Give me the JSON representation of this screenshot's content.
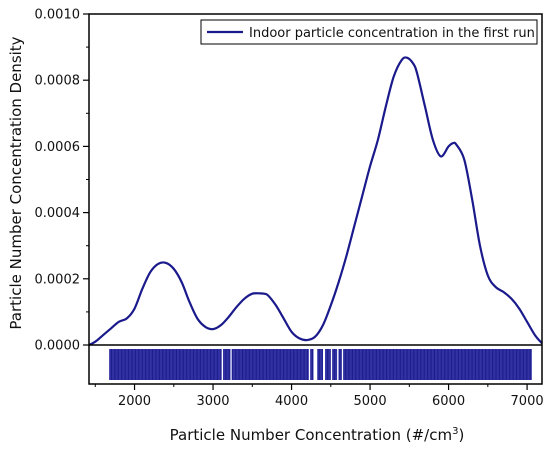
{
  "chart_data": {
    "type": "line",
    "title": "",
    "xlabel": "Particle Number Concentration (#/cm",
    "xlabel_superscript": "3",
    "xlabel_suffix": ")",
    "ylabel": "Particle Number Concentration Density",
    "xlim": [
      1420,
      7190
    ],
    "ylim": [
      0,
      0.001
    ],
    "legend_position": "top-right",
    "grid": false,
    "color": "#1a1a8c",
    "x_ticks": [
      2000,
      3000,
      4000,
      5000,
      6000,
      7000
    ],
    "x_tick_labels": [
      "2000",
      "3000",
      "4000",
      "5000",
      "6000",
      "7000"
    ],
    "y_ticks": [
      0,
      0.0002,
      0.0004,
      0.0006,
      0.0008,
      0.001
    ],
    "y_tick_labels": [
      "0.0000",
      "0.0002",
      "0.0004",
      "0.0006",
      "0.0008",
      "0.0010"
    ],
    "series": [
      {
        "name": "Indoor particle concentration in the first run",
        "x": [
          1420,
          1500,
          1600,
          1700,
          1800,
          1900,
          2000,
          2100,
          2200,
          2300,
          2400,
          2500,
          2600,
          2700,
          2800,
          2900,
          3000,
          3100,
          3200,
          3300,
          3400,
          3500,
          3600,
          3650,
          3700,
          3800,
          3900,
          4000,
          4100,
          4200,
          4300,
          4400,
          4500,
          4600,
          4700,
          4800,
          4900,
          5000,
          5100,
          5200,
          5300,
          5400,
          5470,
          5550,
          5600,
          5700,
          5800,
          5900,
          6000,
          6060,
          6100,
          6200,
          6300,
          6400,
          6500,
          6600,
          6700,
          6800,
          6900,
          7000,
          7100,
          7190
        ],
        "y": [
          0,
          1e-05,
          3e-05,
          5e-05,
          7e-05,
          8e-05,
          0.00011,
          0.00017,
          0.00022,
          0.000245,
          0.000248,
          0.00023,
          0.00019,
          0.00013,
          8e-05,
          5.5e-05,
          4.8e-05,
          6e-05,
          8.5e-05,
          0.000115,
          0.00014,
          0.000155,
          0.000156,
          0.000155,
          0.00015,
          0.00012,
          8e-05,
          4e-05,
          2e-05,
          1.5e-05,
          2.5e-05,
          6e-05,
          0.00012,
          0.00019,
          0.00027,
          0.00036,
          0.00045,
          0.00054,
          0.00062,
          0.00072,
          0.00081,
          0.00086,
          0.000868,
          0.00085,
          0.00082,
          0.00072,
          0.00062,
          0.00057,
          0.0006,
          0.00061,
          0.000605,
          0.00056,
          0.00044,
          0.0003,
          0.00021,
          0.000175,
          0.00016,
          0.00014,
          0.00011,
          7e-05,
          3e-05,
          5e-06
        ]
      }
    ],
    "rug_ranges": [
      [
        1680,
        3110
      ],
      [
        3130,
        3220
      ],
      [
        3240,
        4220
      ],
      [
        4240,
        4280
      ],
      [
        4330,
        4400
      ],
      [
        4430,
        4500
      ],
      [
        4520,
        4580
      ],
      [
        4600,
        4640
      ],
      [
        4660,
        7060
      ]
    ]
  }
}
